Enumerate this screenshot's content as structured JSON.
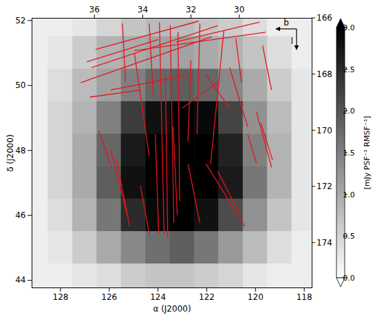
{
  "chart_data": {
    "type": "image",
    "x_label": "α (J2000)",
    "y_label": "δ (J2000)",
    "xlim": [
      129.17,
      117.68
    ],
    "xticks": [
      128,
      126,
      124,
      122,
      120,
      118
    ],
    "ylim": [
      43.77,
      52.07
    ],
    "yticks": [
      44,
      46,
      48,
      50,
      52
    ],
    "x2lim": [
      38.6,
      27.0
    ],
    "x2ticks": [
      36,
      34,
      32,
      30
    ],
    "y2lim": [
      175.6,
      166
    ],
    "y2ticks": [
      166,
      168,
      170,
      172,
      174
    ],
    "image": {
      "x": [
        129,
        128,
        127,
        126,
        125,
        124,
        123,
        122,
        121,
        120,
        119,
        118
      ],
      "y": [
        52,
        51,
        50,
        49,
        48,
        47,
        46,
        45,
        44
      ],
      "values": [
        [
          0.2,
          0.2,
          0.3,
          0.5,
          0.7,
          0.8,
          0.8,
          0.7,
          0.6,
          0.4,
          0.2,
          0.2
        ],
        [
          0.2,
          0.3,
          0.6,
          0.9,
          1.0,
          1.1,
          1.1,
          1.0,
          0.9,
          0.7,
          0.4,
          0.2
        ],
        [
          0.2,
          0.4,
          0.8,
          1.1,
          1.5,
          1.8,
          1.9,
          1.8,
          1.4,
          1.0,
          0.6,
          0.3
        ],
        [
          0.2,
          0.5,
          0.9,
          1.5,
          2.3,
          2.8,
          3.0,
          2.9,
          2.2,
          1.3,
          0.8,
          0.3
        ],
        [
          0.2,
          0.5,
          1.0,
          1.8,
          2.7,
          3.0,
          3.0,
          3.0,
          2.6,
          1.5,
          0.9,
          0.3
        ],
        [
          0.2,
          0.5,
          1.0,
          1.9,
          2.8,
          3.0,
          3.0,
          3.0,
          2.7,
          1.6,
          0.9,
          0.3
        ],
        [
          0.2,
          0.4,
          0.9,
          1.6,
          2.5,
          2.9,
          3.0,
          2.8,
          2.1,
          1.3,
          0.7,
          0.3
        ],
        [
          0.2,
          0.3,
          0.6,
          1.0,
          1.4,
          1.7,
          1.9,
          1.6,
          1.2,
          0.8,
          0.4,
          0.2
        ],
        [
          0.2,
          0.2,
          0.3,
          0.4,
          0.6,
          0.7,
          0.7,
          0.6,
          0.5,
          0.3,
          0.2,
          0.2
        ]
      ]
    },
    "series": [
      {
        "type": "segment",
        "color": "#e3161e",
        "values": [
          [
            126.56,
            51.11,
            122.33,
            51.98
          ],
          [
            126.73,
            50.55,
            121.55,
            51.84
          ],
          [
            127.17,
            50.09,
            121.79,
            51.5
          ],
          [
            126.92,
            50.73,
            123.99,
            51.41
          ],
          [
            124.97,
            51.07,
            119.59,
            51.64
          ],
          [
            123.26,
            51.34,
            119.83,
            51.95
          ],
          [
            123.94,
            51.95,
            123.75,
            45.43
          ],
          [
            123.5,
            51.86,
            123.35,
            45.77
          ],
          [
            123.18,
            51.64,
            123.11,
            46.45
          ],
          [
            123.7,
            50.32,
            123.6,
            45.32
          ],
          [
            124.11,
            48.5,
            123.97,
            45.43
          ],
          [
            122.28,
            51.91,
            122.4,
            48.5
          ],
          [
            121.3,
            51.68,
            121.84,
            47.59
          ],
          [
            122.65,
            50.77,
            122.77,
            48.27
          ],
          [
            124.36,
            51.91,
            124.19,
            49.64
          ],
          [
            119.96,
            49.18,
            119.34,
            47.48
          ],
          [
            119.78,
            48.84,
            119.3,
            47.7
          ],
          [
            120.32,
            48.5,
            119.96,
            47.59
          ],
          [
            125.95,
            48.05,
            125.26,
            46.0
          ],
          [
            125.7,
            47.7,
            125.16,
            45.66
          ],
          [
            126.44,
            48.61,
            125.9,
            47.48
          ],
          [
            122.03,
            47.59,
            120.44,
            45.66
          ],
          [
            121.55,
            47.36,
            120.62,
            46.0
          ],
          [
            122.77,
            47.59,
            122.28,
            45.77
          ],
          [
            124.72,
            46.91,
            124.36,
            45.43
          ],
          [
            121.06,
            50.55,
            120.32,
            48.73
          ],
          [
            122.03,
            50.32,
            121.06,
            49.3
          ],
          [
            125.95,
            49.86,
            122.77,
            50.32
          ],
          [
            126.8,
            49.64,
            124.72,
            49.86
          ],
          [
            123.01,
            49.3,
            121.55,
            50.09
          ],
          [
            125.46,
            51.91,
            125.33,
            50.09
          ],
          [
            120.81,
            51.45,
            120.57,
            50.09
          ],
          [
            124.97,
            51.0,
            124.36,
            47.82
          ],
          [
            123.38,
            48.73,
            123.21,
            46.0
          ],
          [
            119.71,
            51.23,
            119.34,
            49.86
          ]
        ]
      }
    ],
    "colorbar": {
      "label": "[mJy PSF⁻¹ RMSF⁻¹]",
      "range": [
        0,
        3
      ],
      "ticks": [
        {
          "value": 0,
          "label": "0.0"
        },
        {
          "value": 0.5,
          "label": "0.5"
        },
        {
          "value": 1,
          "label": "1.0"
        },
        {
          "value": 1.5,
          "label": "1.5"
        },
        {
          "value": 2,
          "label": "2.0"
        },
        {
          "value": 2.5,
          "label": "2.5"
        },
        {
          "value": 3,
          "label": "3.0"
        }
      ]
    },
    "annotations": [
      "b",
      "l"
    ]
  }
}
